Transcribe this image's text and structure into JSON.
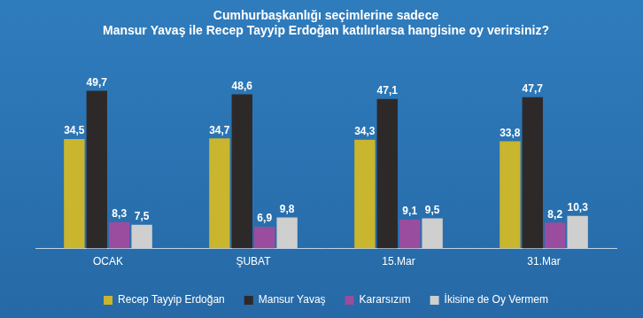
{
  "chart_data": {
    "type": "bar",
    "title": [
      "Cumhurbaşkanlığı seçimlerine sadece",
      "Mansur Yavaş ile Recep Tayyip Erdoğan katılırlarsa hangisine oy verirsiniz?"
    ],
    "categories": [
      "OCAK",
      "ŞUBAT",
      "15.Mar",
      "31.Mar"
    ],
    "series": [
      {
        "name": "Recep Tayyip Erdoğan",
        "color": "#c9b52e",
        "values": [
          34.5,
          34.7,
          34.3,
          33.8
        ],
        "value_labels": [
          "34,5",
          "34,7",
          "34,3",
          "33,8"
        ]
      },
      {
        "name": "Mansur Yavaş",
        "color": "#2e2929",
        "values": [
          49.7,
          48.6,
          47.1,
          47.7
        ],
        "value_labels": [
          "49,7",
          "48,6",
          "47,1",
          "47,7"
        ]
      },
      {
        "name": "Kararsızım",
        "color": "#9a4d9e",
        "values": [
          8.3,
          6.9,
          9.1,
          8.2
        ],
        "value_labels": [
          "8,3",
          "6,9",
          "9,1",
          "8,2"
        ]
      },
      {
        "name": "İkisine de Oy Vermem",
        "color": "#cfcfcf",
        "values": [
          7.5,
          9.8,
          9.5,
          10.3
        ],
        "value_labels": [
          "7,5",
          "9,8",
          "9,5",
          "10,3"
        ]
      }
    ],
    "data_labels": true,
    "tick_labels": "x",
    "grid": false,
    "legend": "bottom"
  }
}
